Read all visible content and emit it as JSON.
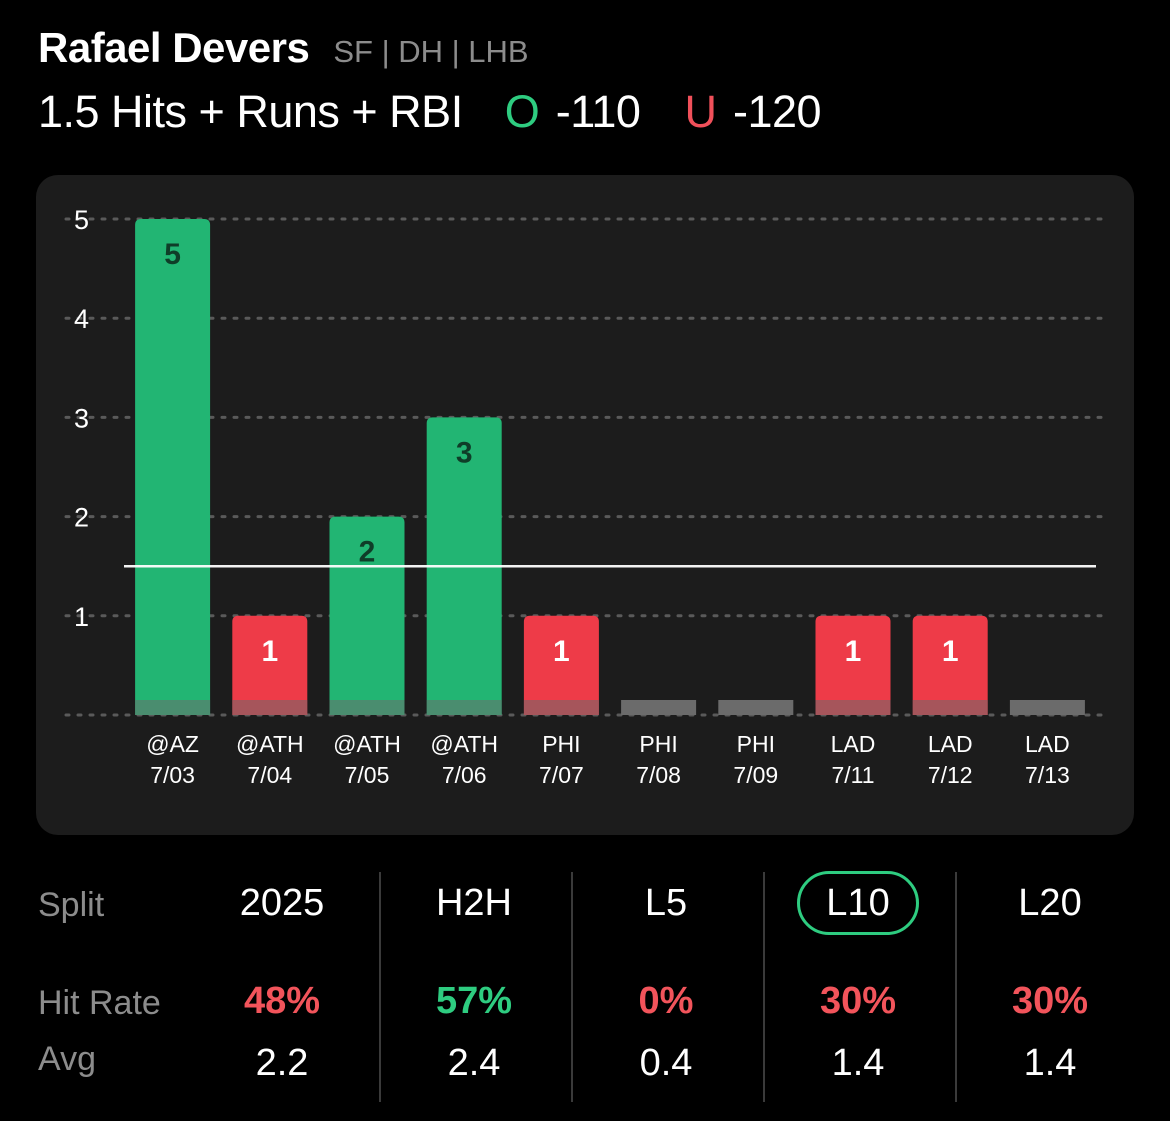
{
  "player": {
    "name": "Rafael Devers",
    "meta": "SF | DH | LHB"
  },
  "prop": {
    "label": "1.5 Hits + Runs + RBI",
    "over": {
      "letter": "O",
      "odds": "-110"
    },
    "under": {
      "letter": "U",
      "odds": "-120"
    }
  },
  "colors": {
    "over_green": "#22b573",
    "under_red": "#ee3b48",
    "accent_green": "#2ecc80",
    "hit_red": "#f2545b",
    "card_bg": "#1c1c1c"
  },
  "chart_data": {
    "type": "bar",
    "line": 1.5,
    "ylim": [
      0,
      5
    ],
    "yticks": [
      "1",
      "2",
      "3",
      "4",
      "5"
    ],
    "grid": true,
    "categories": [
      {
        "team": "@AZ",
        "date": "7/03"
      },
      {
        "team": "@ATH",
        "date": "7/04"
      },
      {
        "team": "@ATH",
        "date": "7/05"
      },
      {
        "team": "@ATH",
        "date": "7/06"
      },
      {
        "team": "PHI",
        "date": "7/07"
      },
      {
        "team": "PHI",
        "date": "7/08"
      },
      {
        "team": "PHI",
        "date": "7/09"
      },
      {
        "team": "LAD",
        "date": "7/11"
      },
      {
        "team": "LAD",
        "date": "7/12"
      },
      {
        "team": "LAD",
        "date": "7/13"
      }
    ],
    "values": [
      5,
      1,
      2,
      3,
      1,
      0,
      0,
      1,
      1,
      0
    ],
    "labels": [
      "5",
      "1",
      "2",
      "3",
      "1",
      "",
      "",
      "1",
      "1",
      ""
    ]
  },
  "splits": {
    "row_labels": {
      "split": "Split",
      "hit_rate": "Hit Rate",
      "avg": "Avg"
    },
    "columns": [
      {
        "name": "2025",
        "hit_rate": "48%",
        "hit_color": "red",
        "avg": "2.2",
        "active": false
      },
      {
        "name": "H2H",
        "hit_rate": "57%",
        "hit_color": "green",
        "avg": "2.4",
        "active": false
      },
      {
        "name": "L5",
        "hit_rate": "0%",
        "hit_color": "red",
        "avg": "0.4",
        "active": false
      },
      {
        "name": "L10",
        "hit_rate": "30%",
        "hit_color": "red",
        "avg": "1.4",
        "active": true
      },
      {
        "name": "L20",
        "hit_rate": "30%",
        "hit_color": "red",
        "avg": "1.4",
        "active": false
      }
    ]
  }
}
